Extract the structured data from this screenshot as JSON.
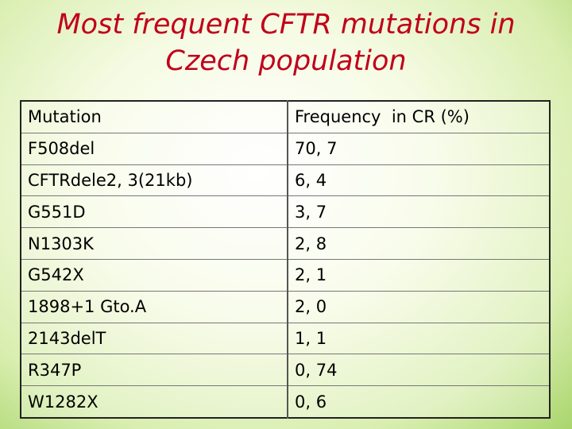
{
  "header": {
    "title_lines": [
      "Most frequent CFTR mutations in",
      "Czech population"
    ]
  },
  "table": {
    "columns": [
      "Mutation",
      "Frequency  in CR (%)"
    ],
    "rows": [
      [
        "F508del",
        "70, 7"
      ],
      [
        "CFTRdele2, 3(21kb)",
        "6, 4"
      ],
      [
        "G551D",
        "3, 7"
      ],
      [
        "N1303K",
        "2, 8"
      ],
      [
        "G542X",
        "2, 1"
      ],
      [
        "1898+1 Gto.A",
        "2, 0"
      ],
      [
        "2143delT",
        "1, 1"
      ],
      [
        "R347P",
        "0, 74"
      ],
      [
        "W1282X",
        "0, 6"
      ]
    ]
  }
}
